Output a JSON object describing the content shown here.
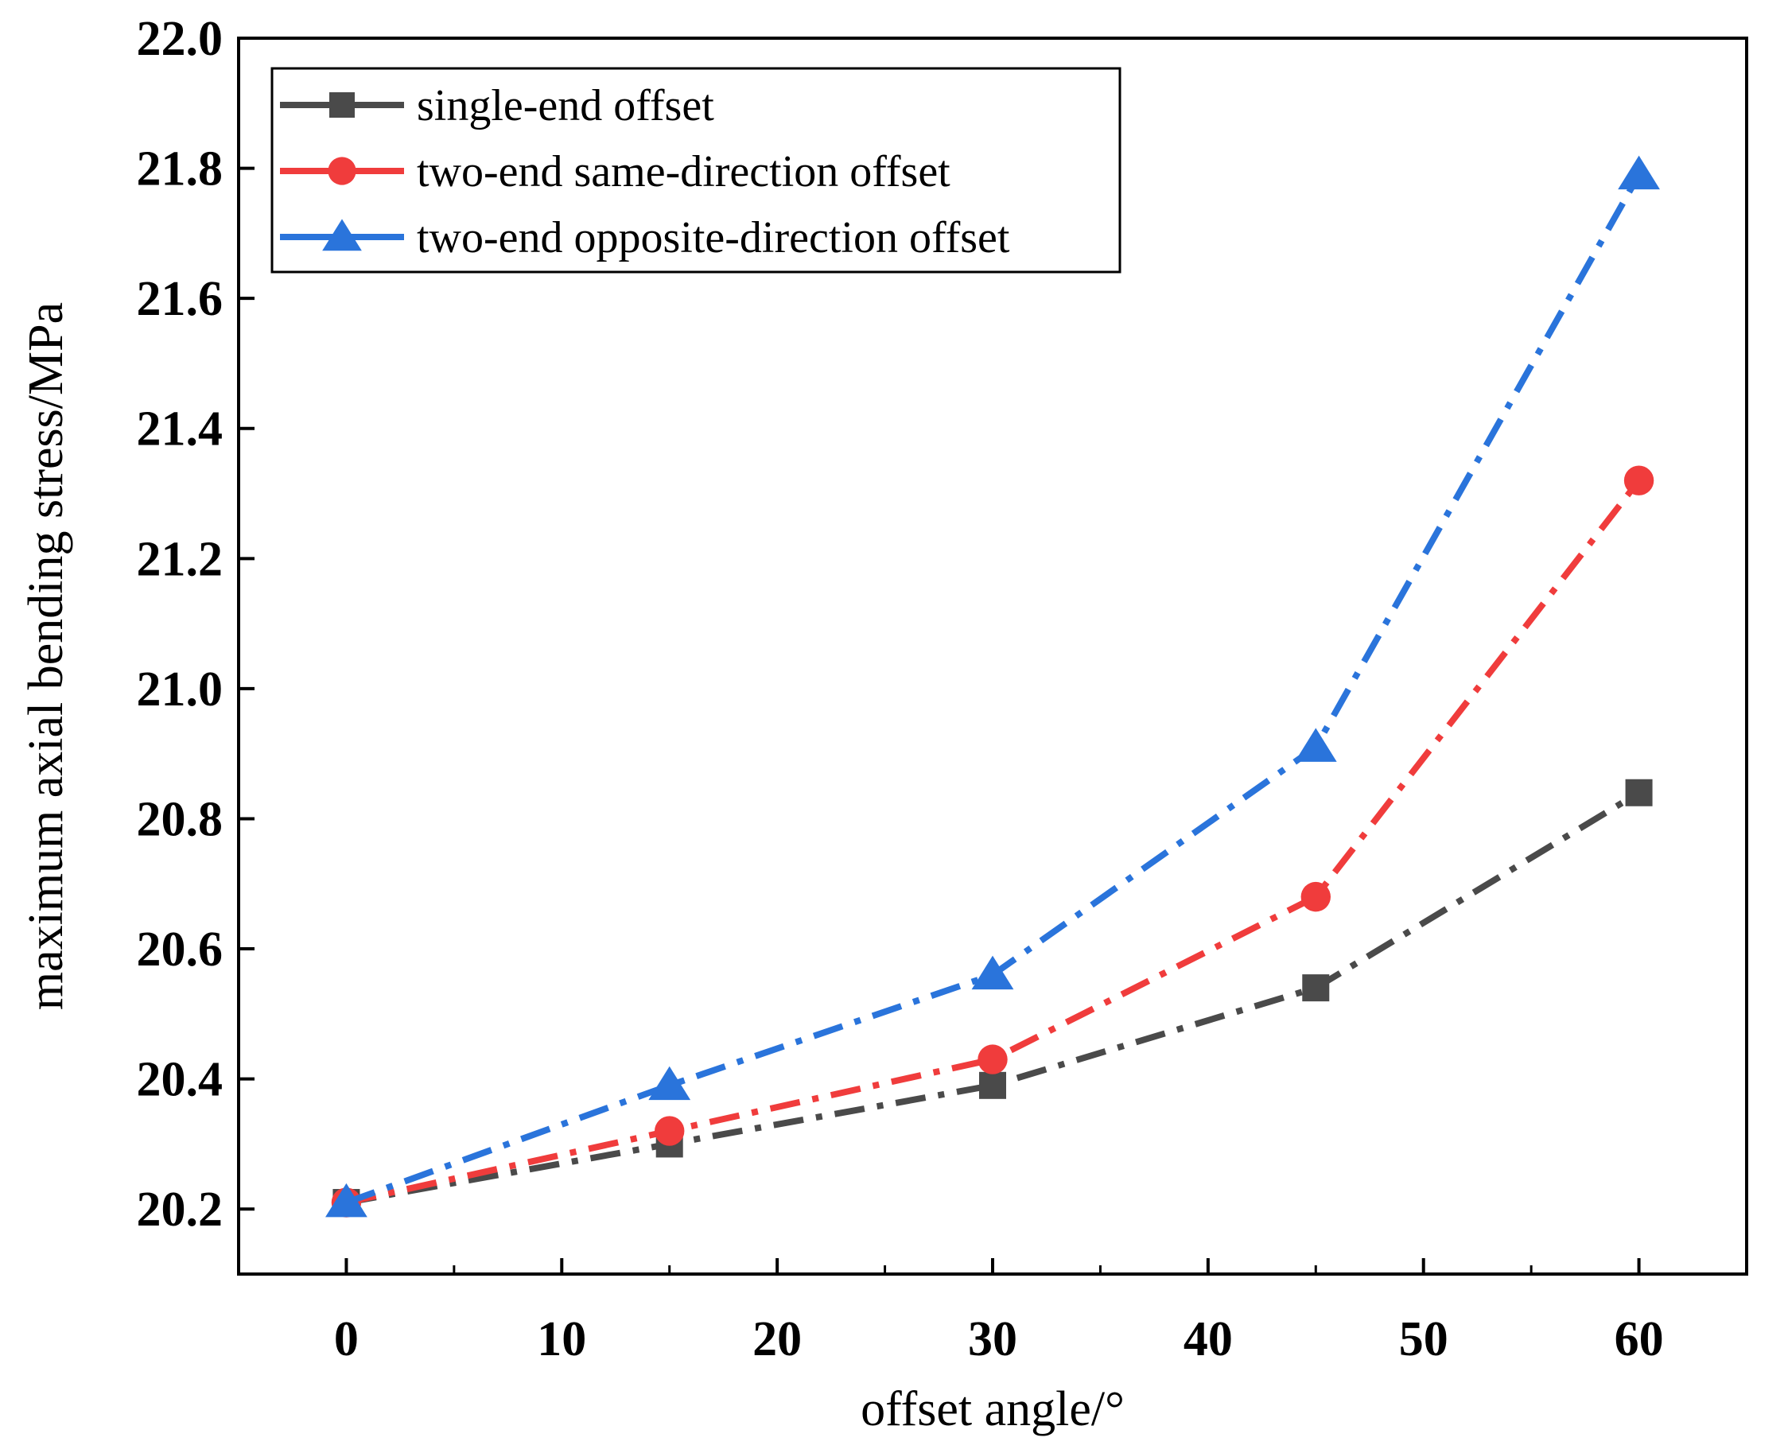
{
  "chart_data": {
    "type": "line",
    "xlabel": "offset angle/°",
    "ylabel": "maximum axial bending stress/MPa",
    "xlim": [
      -5,
      65
    ],
    "ylim": [
      20.1,
      22.0
    ],
    "xticks": [
      0,
      10,
      20,
      30,
      40,
      50,
      60
    ],
    "yticks": [
      20.2,
      20.4,
      20.6,
      20.8,
      21.0,
      21.2,
      21.4,
      21.6,
      21.8,
      22.0
    ],
    "xtick_labels": [
      "0",
      "10",
      "20",
      "30",
      "40",
      "50",
      "60"
    ],
    "ytick_labels": [
      "20.2",
      "20.4",
      "20.6",
      "20.8",
      "21.0",
      "21.2",
      "21.4",
      "21.6",
      "21.8",
      "22.0"
    ],
    "x": [
      0,
      15,
      30,
      45,
      60
    ],
    "legend_position": "top-left",
    "series": [
      {
        "name": "single-end offset",
        "values": [
          20.21,
          20.3,
          20.39,
          20.54,
          20.84
        ],
        "color": "#4a4a4a",
        "marker": "square"
      },
      {
        "name": "two-end same-direction offset",
        "values": [
          20.21,
          20.32,
          20.43,
          20.68,
          21.32
        ],
        "color": "#f03c3c",
        "marker": "circle"
      },
      {
        "name": "two-end opposite-direction offset",
        "values": [
          20.21,
          20.39,
          20.56,
          20.91,
          21.79
        ],
        "color": "#2a74db",
        "marker": "triangle"
      }
    ]
  }
}
